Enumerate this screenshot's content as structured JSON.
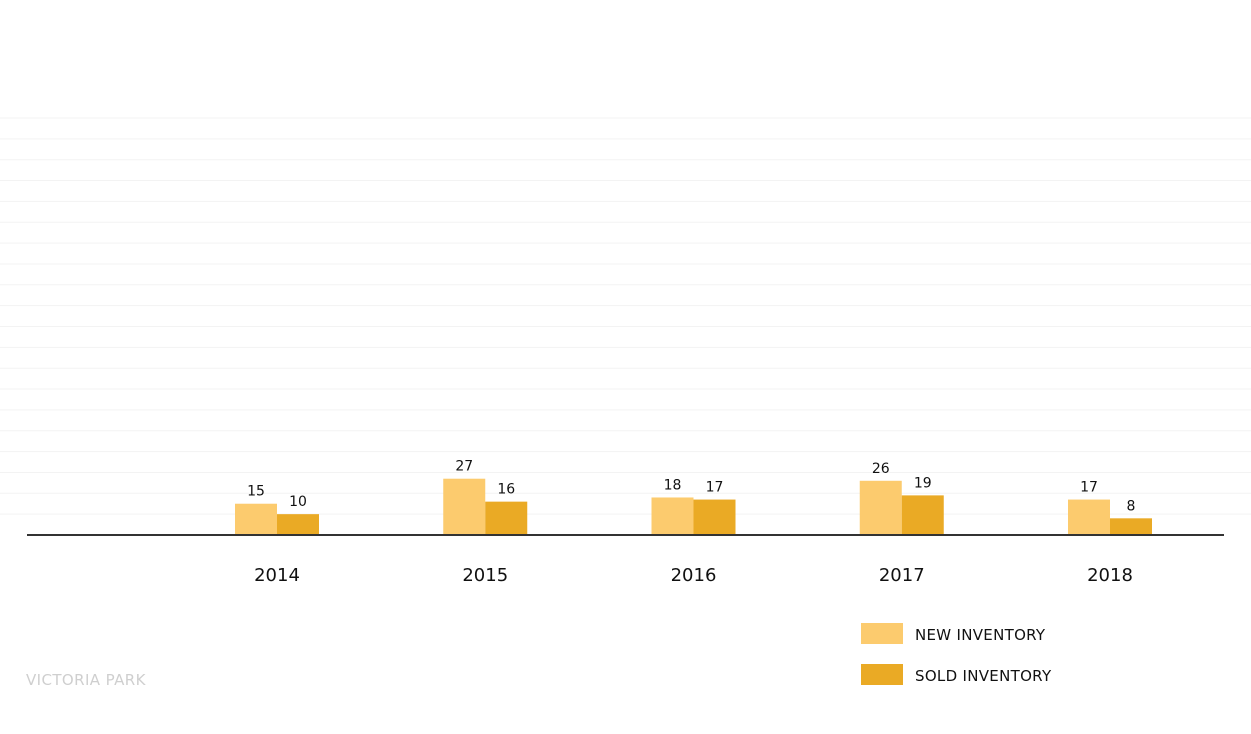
{
  "chart_data": {
    "type": "bar",
    "title": "",
    "subtitle": "",
    "xlabel": "",
    "ylabel": "",
    "categories": [
      "2014",
      "2015",
      "2016",
      "2017",
      "2018"
    ],
    "series": [
      {
        "name": "NEW INVENTORY",
        "color": "#FCCB6E",
        "values": [
          15,
          27,
          18,
          26,
          17
        ]
      },
      {
        "name": "SOLD INVENTORY",
        "color": "#EAAA25",
        "values": [
          10,
          16,
          17,
          19,
          8
        ]
      }
    ],
    "ylim": [
      0,
      200
    ],
    "grid": true,
    "legend": {
      "position": "bottom-right"
    },
    "annotations": [
      "VICTORIA PARK"
    ]
  }
}
